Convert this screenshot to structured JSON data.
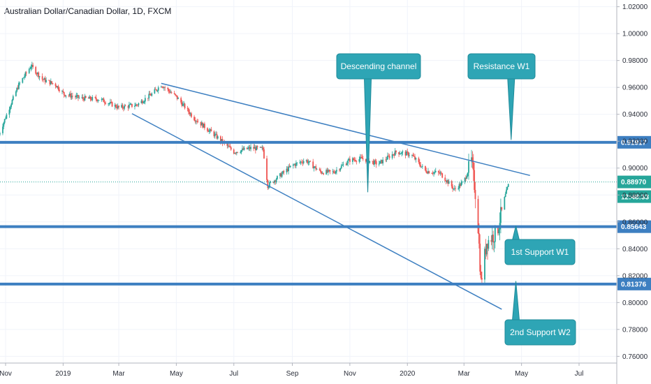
{
  "chart_data": {
    "type": "candlestick",
    "title": "Australian Dollar/Canadian Dollar, 1D, FXCM",
    "ylim": [
      0.755,
      1.025
    ],
    "y_ticks": [
      "1.02000",
      "1.00000",
      "0.98000",
      "0.96000",
      "0.94000",
      "0.92000",
      "0.90000",
      "0.88000",
      "0.86000",
      "0.84000",
      "0.82000",
      "0.80000",
      "0.78000",
      "0.76000"
    ],
    "x_ticks": [
      "Nov",
      "2019",
      "Mar",
      "May",
      "Jul",
      "Sep",
      "Nov",
      "2020",
      "Mar",
      "May",
      "Jul"
    ],
    "horizontal_levels": [
      {
        "price": 0.91917,
        "label": "0.91917",
        "kind": "resistance"
      },
      {
        "price": 0.85643,
        "label": "0.85643",
        "kind": "support"
      },
      {
        "price": 0.81376,
        "label": "0.81376",
        "kind": "support"
      }
    ],
    "current_price": {
      "label": "0.88970",
      "price": 0.8897,
      "countdown": "12:48:33"
    },
    "trendlines": [
      {
        "name": "upper",
        "from": [
          "2019-04-15",
          0.963
        ],
        "to": [
          "2020-05-10",
          0.8945
        ]
      },
      {
        "name": "lower",
        "from": [
          "2019-03-15",
          0.9405
        ],
        "to": [
          "2020-04-10",
          0.795
        ]
      }
    ],
    "annotations": [
      {
        "text": "Descending channel",
        "points_to": [
          "2019-11-20",
          0.882
        ]
      },
      {
        "text": "Resistance W1",
        "points_to": [
          "2020-04-20",
          0.921
        ]
      },
      {
        "text": "1st Support W1",
        "points_to": [
          "2020-04-25",
          0.857
        ]
      },
      {
        "text": "2nd Support W2",
        "points_to": [
          "2020-04-25",
          0.816
        ]
      }
    ],
    "close_path": [
      [
        "2018-10-25",
        0.925
      ],
      [
        "2018-11-05",
        0.945
      ],
      [
        "2018-11-15",
        0.962
      ],
      [
        "2018-11-28",
        0.976
      ],
      [
        "2018-12-10",
        0.966
      ],
      [
        "2018-12-24",
        0.962
      ],
      [
        "2019-01-02",
        0.955
      ],
      [
        "2019-01-20",
        0.952
      ],
      [
        "2019-02-10",
        0.951
      ],
      [
        "2019-03-01",
        0.945
      ],
      [
        "2019-03-20",
        0.947
      ],
      [
        "2019-04-05",
        0.955
      ],
      [
        "2019-04-15",
        0.962
      ],
      [
        "2019-05-01",
        0.953
      ],
      [
        "2019-05-20",
        0.937
      ],
      [
        "2019-06-10",
        0.925
      ],
      [
        "2019-07-01",
        0.912
      ],
      [
        "2019-07-20",
        0.915
      ],
      [
        "2019-08-01",
        0.914
      ],
      [
        "2019-08-06",
        0.887
      ],
      [
        "2019-09-01",
        0.902
      ],
      [
        "2019-09-15",
        0.906
      ],
      [
        "2019-10-01",
        0.897
      ],
      [
        "2019-10-15",
        0.897
      ],
      [
        "2019-11-01",
        0.906
      ],
      [
        "2019-11-15",
        0.907
      ],
      [
        "2019-12-01",
        0.903
      ],
      [
        "2019-12-20",
        0.912
      ],
      [
        "2020-01-05",
        0.91
      ],
      [
        "2020-01-20",
        0.898
      ],
      [
        "2020-02-05",
        0.896
      ],
      [
        "2020-02-20",
        0.884
      ],
      [
        "2020-03-01",
        0.89
      ],
      [
        "2020-03-09",
        0.905
      ],
      [
        "2020-03-15",
        0.87
      ],
      [
        "2020-03-19",
        0.815
      ],
      [
        "2020-03-25",
        0.845
      ],
      [
        "2020-04-05",
        0.852
      ],
      [
        "2020-04-12",
        0.875
      ],
      [
        "2020-04-18",
        0.8897
      ]
    ]
  }
}
